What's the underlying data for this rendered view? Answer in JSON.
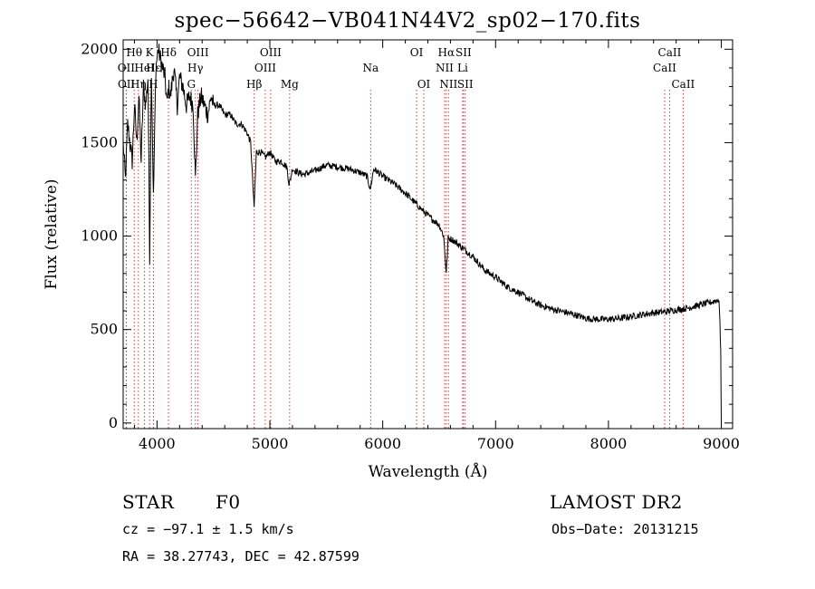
{
  "chart_data": {
    "type": "line",
    "title": "spec−56642−VB041N44V2_sp02−170.fits",
    "xlabel": "Wavelength (Å)",
    "ylabel": "Flux (relative)",
    "xlim": [
      3700,
      9100
    ],
    "ylim": [
      -30,
      2050
    ],
    "xticks": [
      4000,
      5000,
      6000,
      7000,
      8000,
      9000
    ],
    "yticks": [
      0,
      500,
      1000,
      1500,
      2000
    ],
    "grid": false,
    "series": [
      {
        "x": [
          3700,
          3720,
          3740,
          3760,
          3780,
          3800,
          3820,
          3840,
          3860,
          3880,
          3900,
          3920,
          3935,
          3950,
          3968,
          3990,
          4010,
          4030,
          4050,
          4070,
          4090,
          4101,
          4120,
          4150,
          4180,
          4200,
          4230,
          4260,
          4290,
          4320,
          4340,
          4360,
          4390,
          4420,
          4450,
          4480,
          4500,
          4550,
          4600,
          4650,
          4700,
          4750,
          4800,
          4830,
          4860,
          4880,
          4920,
          4960,
          5000,
          5050,
          5100,
          5150,
          5170,
          5180,
          5200,
          5250,
          5300,
          5400,
          5500,
          5600,
          5700,
          5800,
          5860,
          5890,
          5920,
          5960,
          6000,
          6100,
          6200,
          6300,
          6400,
          6500,
          6540,
          6563,
          6580,
          6620,
          6700,
          6800,
          6900,
          7000,
          7100,
          7200,
          7300,
          7400,
          7500,
          7600,
          7700,
          7800,
          7900,
          8000,
          8100,
          8200,
          8300,
          8400,
          8500,
          8600,
          8700,
          8800,
          8900,
          8980,
          8995,
          9000
        ],
        "y": [
          1500,
          1300,
          1600,
          1500,
          1400,
          1700,
          1500,
          1750,
          1400,
          1800,
          1700,
          1850,
          900,
          1900,
          1200,
          1900,
          2000,
          1950,
          1900,
          1850,
          1700,
          1800,
          1750,
          1900,
          1700,
          1850,
          1800,
          1700,
          1750,
          1700,
          1300,
          1650,
          1750,
          1700,
          1650,
          1750,
          1700,
          1700,
          1650,
          1650,
          1600,
          1600,
          1550,
          1500,
          1150,
          1450,
          1450,
          1420,
          1450,
          1400,
          1400,
          1370,
          1280,
          1300,
          1360,
          1340,
          1330,
          1350,
          1380,
          1370,
          1360,
          1340,
          1320,
          1250,
          1360,
          1340,
          1320,
          1280,
          1230,
          1170,
          1110,
          1060,
          1000,
          800,
          990,
          980,
          940,
          890,
          820,
          780,
          730,
          700,
          660,
          630,
          610,
          595,
          580,
          560,
          555,
          555,
          560,
          570,
          580,
          590,
          595,
          605,
          615,
          630,
          645,
          660,
          400,
          0
        ],
        "noise": 18
      }
    ],
    "lines": [
      {
        "label": "Hθ",
        "wave": 3798,
        "row": 0
      },
      {
        "label": "OII",
        "wave": 3727,
        "row": 1
      },
      {
        "label": "OII",
        "wave": 3729,
        "row": 2
      },
      {
        "label": "K",
        "wave": 3934,
        "row": 0
      },
      {
        "label": "HeI",
        "wave": 3889,
        "row": 1
      },
      {
        "label": "Hη",
        "wave": 3835,
        "row": 2
      },
      {
        "label": "Hδ",
        "wave": 4102,
        "row": 0
      },
      {
        "label": "Hε",
        "wave": 3970,
        "row": 1
      },
      {
        "label": "H",
        "wave": 3968,
        "row": 2
      },
      {
        "label": "OIII",
        "wave": 4363,
        "row": 0
      },
      {
        "label": "Hγ",
        "wave": 4340,
        "row": 1
      },
      {
        "label": "G",
        "wave": 4304,
        "row": 2
      },
      {
        "label": "OIII",
        "wave": 5007,
        "row": 0
      },
      {
        "label": "OIII",
        "wave": 4959,
        "row": 1
      },
      {
        "label": "Hβ",
        "wave": 4861,
        "row": 2
      },
      {
        "label": "Mg",
        "wave": 5175,
        "row": 2
      },
      {
        "label": "Na",
        "wave": 5893,
        "row": 1
      },
      {
        "label": "OI",
        "wave": 6300,
        "row": 0
      },
      {
        "label": "OI",
        "wave": 6364,
        "row": 2
      },
      {
        "label": "Hα",
        "wave": 6563,
        "row": 0
      },
      {
        "label": "SII",
        "wave": 6716,
        "row": 0
      },
      {
        "label": "NII",
        "wave": 6548,
        "row": 1
      },
      {
        "label": "Li",
        "wave": 6708,
        "row": 1
      },
      {
        "label": "NII",
        "wave": 6583,
        "row": 2
      },
      {
        "label": "SII",
        "wave": 6731,
        "row": 2
      },
      {
        "label": "CaII",
        "wave": 8542,
        "row": 0
      },
      {
        "label": "CaII",
        "wave": 8498,
        "row": 1
      },
      {
        "label": "CaII",
        "wave": 8662,
        "row": 2
      }
    ],
    "line_color": "#d04040"
  },
  "info": {
    "class_label": "STAR",
    "subclass": "F0",
    "survey": "LAMOST DR2",
    "cz_text": "cz = −97.1 ± 1.5 km/s",
    "obs_date_text": "Obs−Date: 20131215",
    "radec_text": "RA =  38.27743, DEC =  42.87599"
  }
}
